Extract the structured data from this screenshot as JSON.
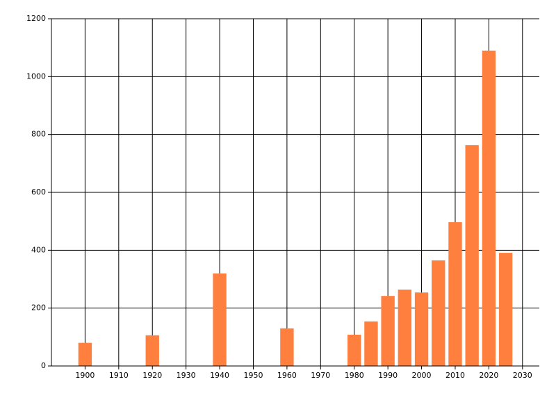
{
  "chart_data": {
    "type": "bar",
    "x": [
      1900,
      1920,
      1940,
      1960,
      1980,
      1985,
      1990,
      1995,
      2000,
      2005,
      2010,
      2015,
      2020,
      2025
    ],
    "values": [
      80,
      106,
      320,
      130,
      108,
      154,
      242,
      264,
      254,
      365,
      497,
      763,
      1090,
      391
    ],
    "color": "#ff7f3f",
    "xlim": [
      1890,
      2035
    ],
    "xticks": [
      1900,
      1910,
      1920,
      1930,
      1940,
      1950,
      1960,
      1970,
      1980,
      1990,
      2000,
      2010,
      2020,
      2030
    ],
    "ylim": [
      0,
      1200
    ],
    "yticks": [
      0,
      200,
      400,
      600,
      800,
      1000,
      1200
    ],
    "grid": true
  }
}
